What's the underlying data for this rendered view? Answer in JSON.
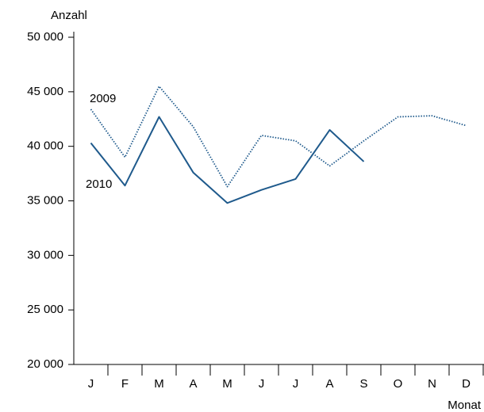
{
  "chart_data": {
    "type": "line",
    "y_label": "Anzahl",
    "x_label": "Monat",
    "categories": [
      "J",
      "F",
      "M",
      "A",
      "M",
      "J",
      "J",
      "A",
      "S",
      "O",
      "N",
      "D"
    ],
    "series": [
      {
        "name": "2009",
        "color": "#1f5a8c",
        "dash": "dotted",
        "values": [
          43400,
          39000,
          45500,
          41800,
          36300,
          41000,
          40500,
          38200,
          40500,
          42700,
          42800,
          41900
        ]
      },
      {
        "name": "2010",
        "color": "#1f5a8c",
        "dash": "solid",
        "values": [
          40300,
          36400,
          42700,
          37600,
          34800,
          36000,
          37000,
          41500,
          38600,
          null,
          null,
          null
        ]
      }
    ],
    "ylim": [
      20000,
      50000
    ],
    "yticks": [
      {
        "value": 20000,
        "label": "20 000"
      },
      {
        "value": 25000,
        "label": "25 000"
      },
      {
        "value": 30000,
        "label": "30 000"
      },
      {
        "value": 35000,
        "label": "35 000"
      },
      {
        "value": 40000,
        "label": "40 000"
      },
      {
        "value": 45000,
        "label": "45 000"
      },
      {
        "value": 50000,
        "label": "50 000"
      }
    ]
  }
}
